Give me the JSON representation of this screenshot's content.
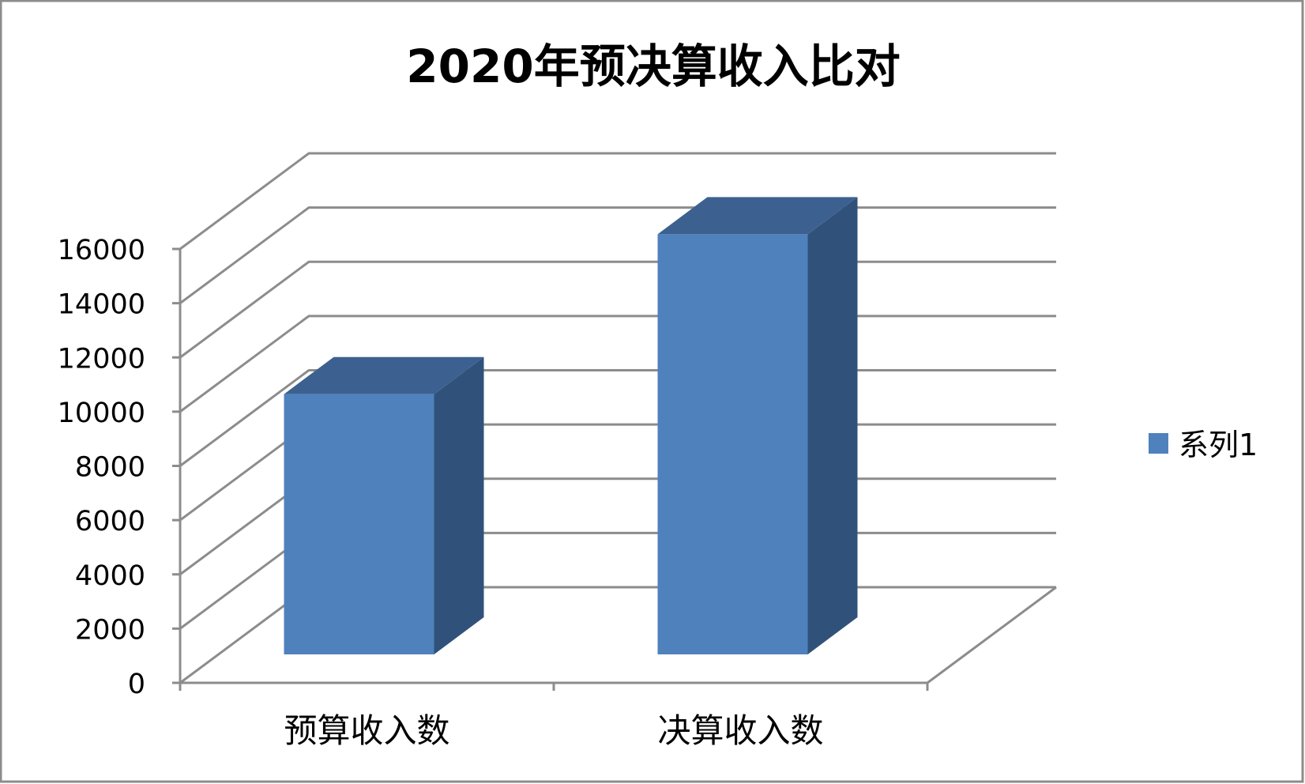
{
  "chart_data": {
    "type": "bar",
    "style": "3d-column",
    "title": "2020年预决算收入比对",
    "categories": [
      "预算收入数",
      "决算收入数"
    ],
    "series": [
      {
        "name": "系列1",
        "values": [
          9600,
          15500
        ],
        "color": "#4F81BD"
      }
    ],
    "ylim": [
      0,
      16000
    ],
    "yticks": [
      "0",
      "2000",
      "4000",
      "6000",
      "8000",
      "10000",
      "12000",
      "14000",
      "16000"
    ],
    "grid": true,
    "legend": "right",
    "colors": {
      "bar_front": "#4F81BD",
      "bar_top": "#3C6190",
      "bar_side": "#30527A",
      "grid": "#8C8C8C",
      "border": "#8C8C8C"
    }
  }
}
